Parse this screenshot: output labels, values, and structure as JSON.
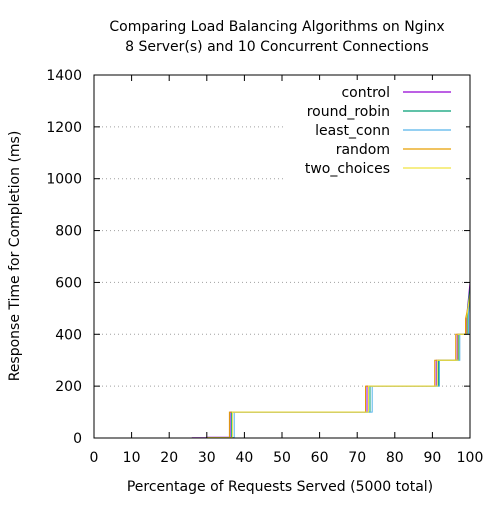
{
  "chart_data": {
    "type": "line",
    "title_lines": [
      "Comparing Load Balancing Algorithms on Nginx",
      "8 Server(s) and 10 Concurrent Connections"
    ],
    "xlabel": "Percentage of Requests Served (5000 total)",
    "ylabel": "Response Time for Completion (ms)",
    "xlim": [
      0,
      100
    ],
    "ylim": [
      0,
      1400
    ],
    "xticks": [
      0,
      10,
      20,
      30,
      40,
      50,
      60,
      70,
      80,
      90,
      100
    ],
    "yticks": [
      0,
      200,
      400,
      600,
      800,
      1000,
      1200,
      1400
    ],
    "grid": "horizontal dotted",
    "legend_position": "top-right",
    "series": [
      {
        "name": "control",
        "color": "#9400d3",
        "points": [
          [
            26,
            1
          ],
          [
            30,
            1
          ],
          [
            30,
            3
          ],
          [
            36.2,
            3
          ],
          [
            36.2,
            100
          ],
          [
            72.6,
            100
          ],
          [
            72.6,
            200
          ],
          [
            91.0,
            200
          ],
          [
            91.0,
            300
          ],
          [
            96.6,
            300
          ],
          [
            96.6,
            400
          ],
          [
            99.0,
            400
          ],
          [
            99.0,
            450
          ],
          [
            100,
            600
          ]
        ]
      },
      {
        "name": "round_robin",
        "color": "#009e73",
        "points": [
          [
            30,
            1
          ],
          [
            36.6,
            1
          ],
          [
            36.6,
            100
          ],
          [
            73.4,
            100
          ],
          [
            73.4,
            200
          ],
          [
            91.6,
            200
          ],
          [
            91.6,
            300
          ],
          [
            97.0,
            300
          ],
          [
            97.0,
            400
          ],
          [
            99.4,
            400
          ],
          [
            99.4,
            500
          ],
          [
            100,
            580
          ]
        ]
      },
      {
        "name": "least_conn",
        "color": "#56b4e9",
        "points": [
          [
            30,
            2
          ],
          [
            37.3,
            2
          ],
          [
            37.3,
            100
          ],
          [
            74.0,
            100
          ],
          [
            74.0,
            200
          ],
          [
            91.9,
            200
          ],
          [
            91.9,
            300
          ],
          [
            97.3,
            300
          ],
          [
            97.3,
            400
          ],
          [
            99.6,
            400
          ],
          [
            99.6,
            480
          ],
          [
            100,
            560
          ]
        ]
      },
      {
        "name": "random",
        "color": "#e69f00",
        "points": [
          [
            30,
            1
          ],
          [
            36.0,
            1
          ],
          [
            36.0,
            100
          ],
          [
            72.2,
            100
          ],
          [
            72.2,
            200
          ],
          [
            90.6,
            200
          ],
          [
            90.6,
            300
          ],
          [
            96.2,
            300
          ],
          [
            96.2,
            400
          ],
          [
            98.8,
            400
          ],
          [
            98.8,
            460
          ],
          [
            100,
            540
          ]
        ]
      },
      {
        "name": "two_choices",
        "color": "#f0e442",
        "points": [
          [
            30,
            2
          ],
          [
            36.8,
            2
          ],
          [
            36.8,
            100
          ],
          [
            73.0,
            100
          ],
          [
            73.0,
            200
          ],
          [
            91.3,
            200
          ],
          [
            91.3,
            300
          ],
          [
            96.8,
            300
          ],
          [
            96.8,
            400
          ],
          [
            99.2,
            400
          ],
          [
            99.2,
            470
          ],
          [
            100,
            560
          ]
        ]
      }
    ]
  }
}
